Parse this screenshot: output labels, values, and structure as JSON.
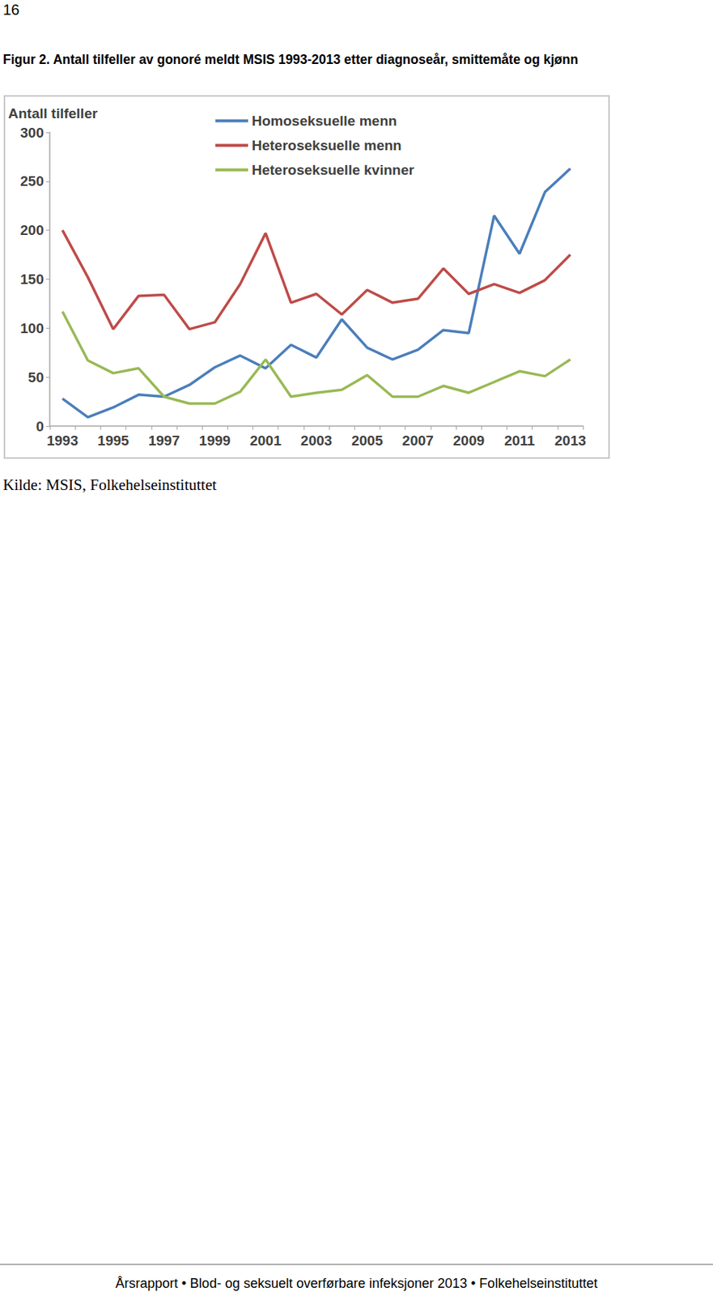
{
  "page_number": "16",
  "caption": "Figur 2. Antall tilfeller av gonoré meldt MSIS 1993-2013 etter diagnoseår, smittemåte og kjønn",
  "source": "Kilde: MSIS, Folkehelseinstituttet",
  "footer": "Årsrapport • Blod- og seksuelt overførbare infeksjoner 2013 • Folkehelseinstituttet",
  "chart_data": {
    "type": "line",
    "y_label": "Antall tilfeller",
    "categories": [
      "1993",
      null,
      "1995",
      null,
      "1997",
      null,
      "1999",
      null,
      "2001",
      null,
      "2003",
      null,
      "2005",
      null,
      "2007",
      null,
      "2009",
      null,
      "2011",
      null,
      "2013"
    ],
    "series": [
      {
        "name": "Homoseksuelle menn",
        "color": "#4a7ebb",
        "values": [
          28,
          9,
          19,
          32,
          30,
          42,
          60,
          72,
          59,
          83,
          70,
          109,
          80,
          68,
          78,
          98,
          95,
          215,
          176,
          239,
          263
        ]
      },
      {
        "name": "Heteroseksuelle menn",
        "color": "#be4b48",
        "values": [
          200,
          152,
          99,
          133,
          134,
          99,
          106,
          145,
          197,
          126,
          135,
          114,
          139,
          126,
          130,
          161,
          135,
          145,
          136,
          149,
          175
        ]
      },
      {
        "name": "Heteroseksuelle kvinner",
        "color": "#98b954",
        "values": [
          117,
          67,
          54,
          59,
          30,
          23,
          23,
          35,
          68,
          30,
          34,
          37,
          52,
          30,
          30,
          41,
          34,
          45,
          56,
          51,
          68
        ]
      }
    ],
    "ylim": [
      0,
      300
    ],
    "yticks": [
      0,
      50,
      100,
      150,
      200,
      250,
      300
    ],
    "grid": false,
    "legend": "top"
  }
}
